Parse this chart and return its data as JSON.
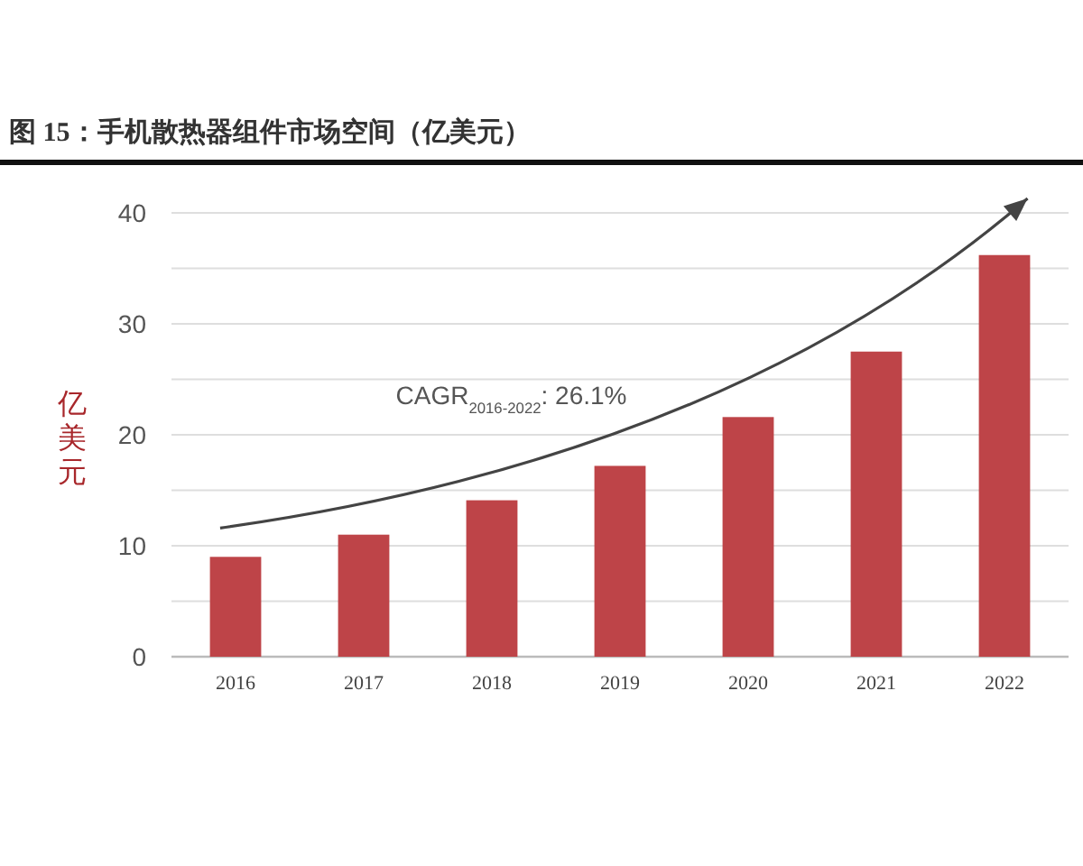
{
  "chart_data": {
    "type": "bar",
    "title": "图 15：手机散热器组件市场空间（亿美元）",
    "ylabel": "亿美元",
    "categories": [
      "2016",
      "2017",
      "2018",
      "2019",
      "2020",
      "2021",
      "2022"
    ],
    "values": [
      9.0,
      11.0,
      14.1,
      17.2,
      21.6,
      27.5,
      36.2
    ],
    "color": "#be4448",
    "ylim": [
      0,
      40
    ],
    "yticks": [
      0,
      {
        "value": 5,
        "label": null
      },
      10,
      {
        "value": 15,
        "label": null
      },
      20,
      {
        "value": 25,
        "label": null
      },
      30,
      {
        "value": 35,
        "label": null
      },
      40
    ],
    "grid": "y",
    "annotations": [
      "CAGR$_{2016-2022}$: 26.1%"
    ]
  }
}
